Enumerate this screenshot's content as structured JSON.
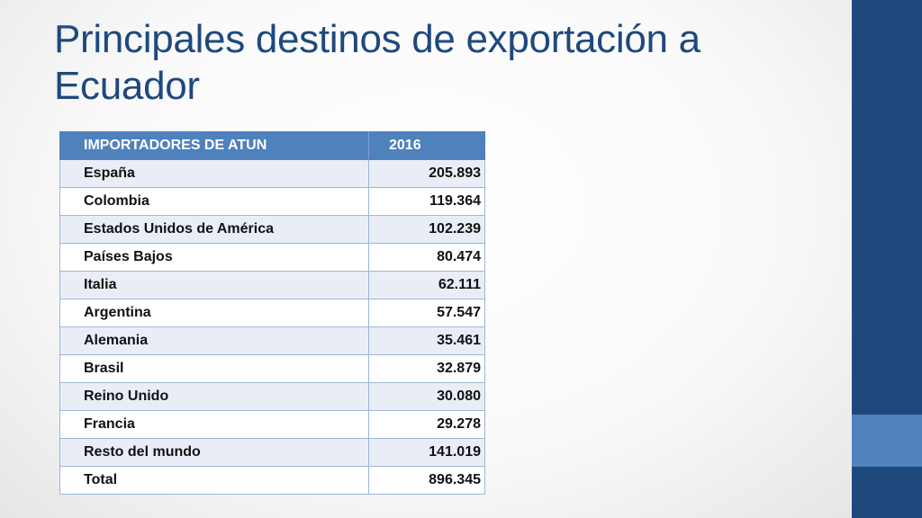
{
  "slide": {
    "title": "Principales destinos de exportación a Ecuador",
    "colors": {
      "title": "#1f497d",
      "header": "#4f81bd",
      "sidebar": "#1f497d",
      "sidebar_accent": "#4f81bd"
    }
  },
  "table": {
    "headers": [
      "IMPORTADORES DE ATUN",
      "2016"
    ],
    "rows": [
      [
        "España",
        "205.893"
      ],
      [
        "Colombia",
        "119.364"
      ],
      [
        "Estados Unidos de América",
        "102.239"
      ],
      [
        "Países Bajos",
        "80.474"
      ],
      [
        "Italia",
        "62.111"
      ],
      [
        "Argentina",
        "57.547"
      ],
      [
        "Alemania",
        "35.461"
      ],
      [
        "Brasil",
        "32.879"
      ],
      [
        "Reino Unido",
        "30.080"
      ],
      [
        "Francia",
        "29.278"
      ],
      [
        "Resto del mundo",
        "141.019"
      ],
      [
        "Total",
        "896.345"
      ]
    ]
  }
}
